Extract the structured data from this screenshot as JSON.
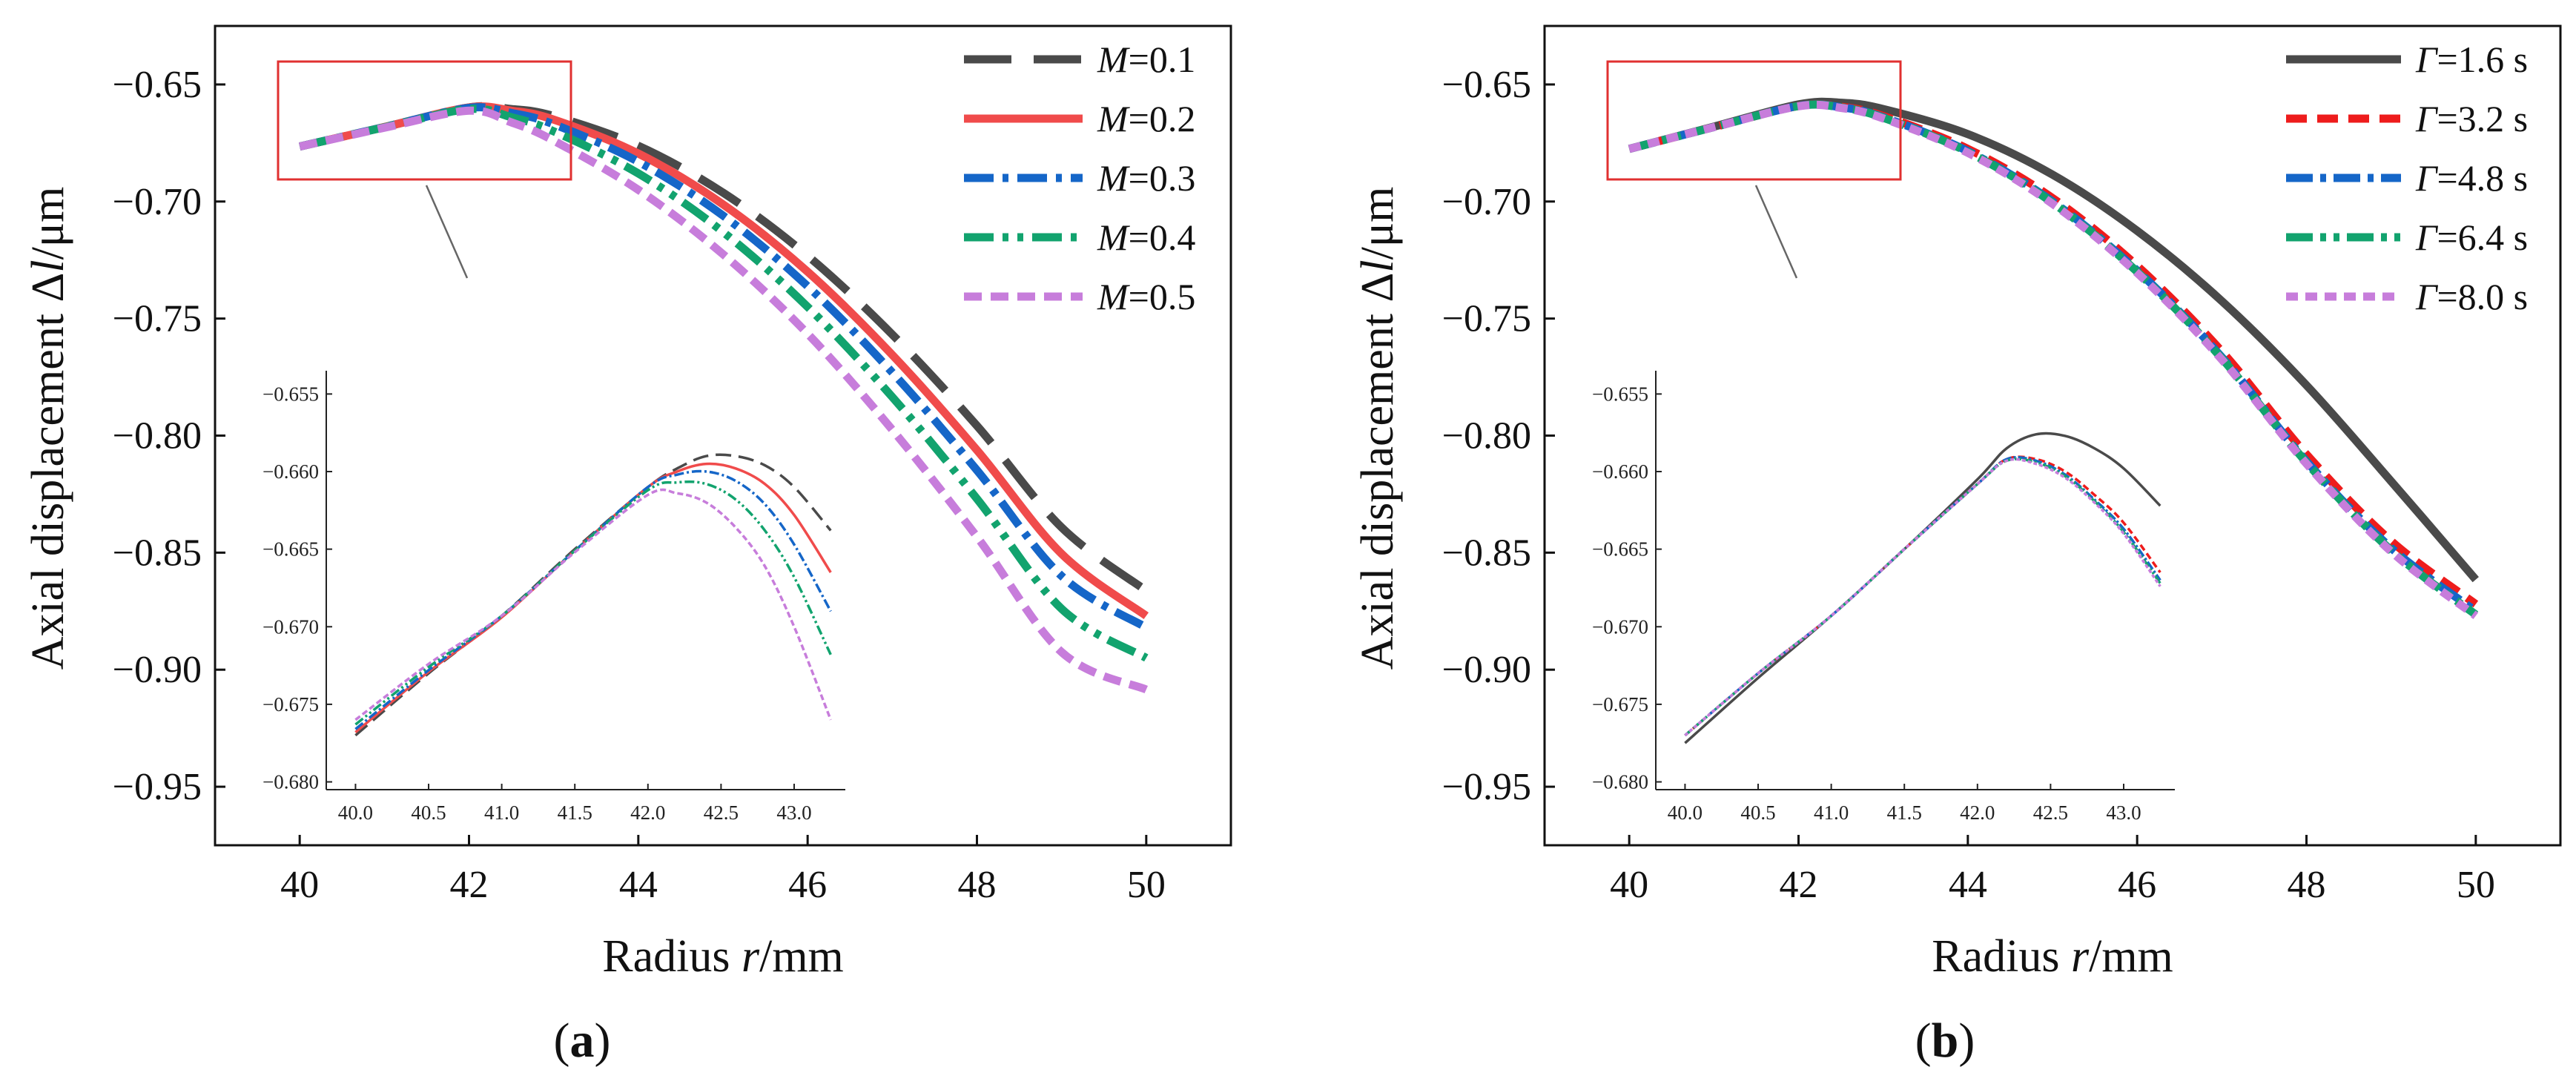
{
  "chart_data": [
    {
      "type": "line",
      "panel_label": "(a)",
      "xlabel": "Radius r/mm",
      "ylabel": "Axial displacement Δl/μm",
      "xlim": [
        39,
        51
      ],
      "ylim": [
        -0.975,
        -0.625
      ],
      "xticks": [
        "40",
        "42",
        "44",
        "46",
        "48",
        "50"
      ],
      "yticks": [
        "-0.65",
        "-0.70",
        "-0.75",
        "-0.80",
        "-0.85",
        "-0.90",
        "-0.95"
      ],
      "legend_position": "top-right",
      "legend_var": "M",
      "series": [
        {
          "name": "M=0.1",
          "var": "M",
          "val": "=0.1",
          "color": "#4a4a4a",
          "dash": "64 30",
          "x": [
            40,
            41,
            42,
            42.5,
            43,
            44,
            45,
            46,
            47,
            48,
            49,
            50
          ],
          "y": [
            -0.6765,
            -0.6682,
            -0.6598,
            -0.6605,
            -0.6635,
            -0.6762,
            -0.6962,
            -0.7232,
            -0.7568,
            -0.7958,
            -0.8392,
            -0.8663
          ]
        },
        {
          "name": "M=0.2",
          "var": "M",
          "val": "=0.2",
          "color": "#f04b4b",
          "dash": "",
          "x": [
            40,
            41,
            42,
            42.5,
            43,
            44,
            45,
            46,
            47,
            48,
            49,
            50
          ],
          "y": [
            -0.6765,
            -0.6682,
            -0.6598,
            -0.6612,
            -0.665,
            -0.6795,
            -0.7012,
            -0.73,
            -0.7655,
            -0.8062,
            -0.8505,
            -0.877
          ]
        },
        {
          "name": "M=0.3",
          "var": "M",
          "val": "=0.3",
          "color": "#1566c8",
          "dash": "40 12 8 12",
          "x": [
            40,
            41,
            42,
            42.5,
            43,
            44,
            45,
            46,
            47,
            48,
            49,
            50
          ],
          "y": [
            -0.6765,
            -0.6682,
            -0.66,
            -0.6622,
            -0.667,
            -0.683,
            -0.706,
            -0.7362,
            -0.773,
            -0.8148,
            -0.86,
            -0.882
          ]
        },
        {
          "name": "M=0.4",
          "var": "M",
          "val": "=0.4",
          "color": "#12a36e",
          "dash": "40 12 8 12 8 12",
          "x": [
            40,
            41,
            42,
            42.5,
            43,
            44,
            45,
            46,
            47,
            48,
            49,
            50
          ],
          "y": [
            -0.6765,
            -0.6683,
            -0.6605,
            -0.664,
            -0.67,
            -0.688,
            -0.713,
            -0.745,
            -0.7835,
            -0.827,
            -0.874,
            -0.895
          ]
        },
        {
          "name": "M=0.5",
          "var": "M",
          "val": "=0.5",
          "color": "#c77ddb",
          "dash": "24 12",
          "x": [
            40,
            41,
            42,
            42.5,
            43,
            44,
            45,
            46,
            47,
            48,
            49,
            50
          ],
          "y": [
            -0.6765,
            -0.6685,
            -0.6612,
            -0.6662,
            -0.674,
            -0.695,
            -0.7225,
            -0.7565,
            -0.7975,
            -0.8432,
            -0.8925,
            -0.9085
          ]
        }
      ],
      "inset": {
        "xlim": [
          39.8,
          43.35
        ],
        "ylim": [
          -0.6805,
          -0.6535
        ],
        "xticks": [
          "40.0",
          "40.5",
          "41.0",
          "41.5",
          "42.0",
          "42.5",
          "43.0"
        ],
        "yticks": [
          "-0.655",
          "-0.660",
          "-0.665",
          "-0.670",
          "-0.675",
          "-0.680"
        ],
        "x": [
          40.0,
          40.5,
          41.0,
          41.5,
          42.0,
          42.2,
          42.4,
          42.6,
          42.8,
          43.0,
          43.25
        ],
        "series_y": [
          [
            -0.677,
            -0.673,
            -0.6693,
            -0.665,
            -0.661,
            -0.6598,
            -0.659,
            -0.659,
            -0.6596,
            -0.661,
            -0.6638
          ],
          [
            -0.6768,
            -0.6729,
            -0.6694,
            -0.6651,
            -0.661,
            -0.66,
            -0.6595,
            -0.6598,
            -0.6608,
            -0.6628,
            -0.6665
          ],
          [
            -0.6766,
            -0.6728,
            -0.6693,
            -0.6651,
            -0.661,
            -0.6602,
            -0.66,
            -0.6606,
            -0.6621,
            -0.6647,
            -0.669
          ],
          [
            -0.6763,
            -0.6726,
            -0.6693,
            -0.6651,
            -0.6612,
            -0.6607,
            -0.6608,
            -0.6618,
            -0.6638,
            -0.6668,
            -0.6718
          ],
          [
            -0.676,
            -0.6724,
            -0.6693,
            -0.6652,
            -0.6615,
            -0.6614,
            -0.662,
            -0.6636,
            -0.6661,
            -0.67,
            -0.676
          ]
        ]
      }
    },
    {
      "type": "line",
      "panel_label": "(b)",
      "xlabel": "Radius r/mm",
      "ylabel": "Axial displacement Δl/μm",
      "xlim": [
        39,
        51
      ],
      "ylim": [
        -0.975,
        -0.625
      ],
      "xticks": [
        "40",
        "42",
        "44",
        "46",
        "48",
        "50"
      ],
      "yticks": [
        "-0.65",
        "-0.70",
        "-0.75",
        "-0.80",
        "-0.85",
        "-0.90",
        "-0.95"
      ],
      "legend_position": "top-right",
      "legend_var": "Γ",
      "series": [
        {
          "name": "Γ=1.6 s",
          "var": "Γ",
          "val": "=1.6 s",
          "color": "#4a4a4a",
          "dash": "",
          "x": [
            40,
            41,
            42,
            42.5,
            43,
            44,
            45,
            46,
            47,
            48,
            49,
            50
          ],
          "y": [
            -0.6775,
            -0.668,
            -0.6585,
            -0.6578,
            -0.6605,
            -0.6712,
            -0.6885,
            -0.7125,
            -0.7425,
            -0.7785,
            -0.8195,
            -0.8615
          ]
        },
        {
          "name": "Γ=3.2 s",
          "var": "Γ",
          "val": "=3.2 s",
          "color": "#ee1c1c",
          "dash": "28 14",
          "x": [
            40,
            41,
            42,
            42.5,
            43,
            44,
            45,
            46,
            47,
            48,
            49,
            50
          ],
          "y": [
            -0.6775,
            -0.6682,
            -0.6592,
            -0.6595,
            -0.6635,
            -0.6775,
            -0.6985,
            -0.7275,
            -0.764,
            -0.808,
            -0.845,
            -0.872
          ]
        },
        {
          "name": "Γ=4.8 s",
          "var": "Γ",
          "val": "=4.8 s",
          "color": "#1566c8",
          "dash": "36 10 8 10",
          "x": [
            40,
            41,
            42,
            42.5,
            43,
            44,
            45,
            46,
            47,
            48,
            49,
            50
          ],
          "y": [
            -0.6775,
            -0.6682,
            -0.6592,
            -0.6597,
            -0.664,
            -0.6785,
            -0.7,
            -0.7295,
            -0.7665,
            -0.811,
            -0.848,
            -0.875
          ]
        },
        {
          "name": "Γ=6.4 s",
          "var": "Γ",
          "val": "=6.4 s",
          "color": "#12a36e",
          "dash": "36 10 8 10 8 10",
          "x": [
            40,
            41,
            42,
            42.5,
            43,
            44,
            45,
            46,
            47,
            48,
            49,
            50
          ],
          "y": [
            -0.6775,
            -0.6682,
            -0.6592,
            -0.6598,
            -0.6642,
            -0.6788,
            -0.7005,
            -0.73,
            -0.767,
            -0.8115,
            -0.849,
            -0.8765
          ]
        },
        {
          "name": "Γ=8.0 s",
          "var": "Γ",
          "val": "=8.0 s",
          "color": "#c77ddb",
          "dash": "16 10",
          "x": [
            40,
            41,
            42,
            42.5,
            43,
            44,
            45,
            46,
            47,
            48,
            49,
            50
          ],
          "y": [
            -0.6775,
            -0.6682,
            -0.6593,
            -0.66,
            -0.6645,
            -0.6792,
            -0.701,
            -0.7305,
            -0.7675,
            -0.812,
            -0.8495,
            -0.877
          ]
        }
      ],
      "inset": {
        "xlim": [
          39.8,
          43.35
        ],
        "ylim": [
          -0.6805,
          -0.6535
        ],
        "xticks": [
          "40.0",
          "40.5",
          "41.0",
          "41.5",
          "42.0",
          "42.5",
          "43.0"
        ],
        "yticks": [
          "-0.655",
          "-0.660",
          "-0.665",
          "-0.670",
          "-0.675",
          "-0.680"
        ],
        "x": [
          40.0,
          40.5,
          41.0,
          41.5,
          42.0,
          42.2,
          42.4,
          42.6,
          42.8,
          43.0,
          43.25
        ],
        "series_y": [
          [
            -0.6775,
            -0.6733,
            -0.6693,
            -0.665,
            -0.6605,
            -0.6585,
            -0.6576,
            -0.6577,
            -0.6585,
            -0.6598,
            -0.6622
          ],
          [
            -0.677,
            -0.673,
            -0.6693,
            -0.665,
            -0.6608,
            -0.6592,
            -0.6592,
            -0.66,
            -0.6615,
            -0.6633,
            -0.6665
          ],
          [
            -0.677,
            -0.673,
            -0.6693,
            -0.665,
            -0.6608,
            -0.6592,
            -0.6593,
            -0.6602,
            -0.6618,
            -0.6637,
            -0.667
          ],
          [
            -0.677,
            -0.673,
            -0.6693,
            -0.665,
            -0.6608,
            -0.6593,
            -0.6594,
            -0.6603,
            -0.6619,
            -0.6639,
            -0.6672
          ],
          [
            -0.677,
            -0.673,
            -0.6693,
            -0.665,
            -0.6608,
            -0.6593,
            -0.6595,
            -0.6604,
            -0.662,
            -0.664,
            -0.6674
          ]
        ]
      }
    }
  ]
}
